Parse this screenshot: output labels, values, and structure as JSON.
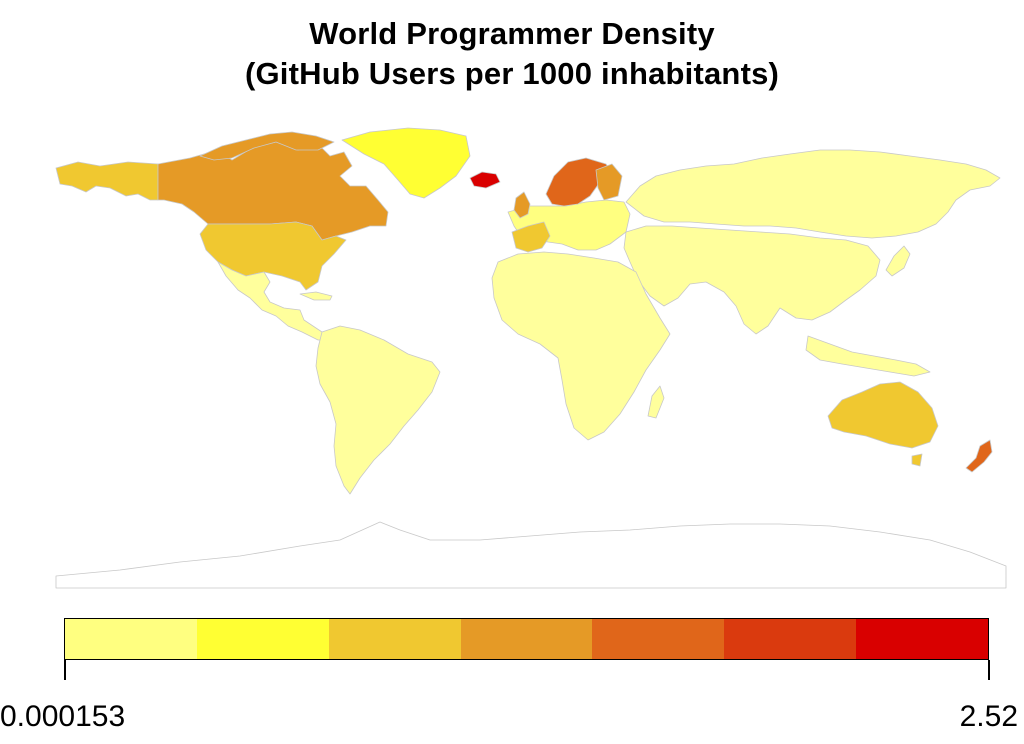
{
  "title": {
    "line1": "World Programmer Density",
    "line2": "(GitHub Users per 1000 inhabitants)"
  },
  "legend": {
    "min_label": "0.000153",
    "max_label": "2.52",
    "min_value": 0.000153,
    "max_value": 2.52,
    "classes": [
      "#ffff80",
      "#ffff33",
      "#f0c830",
      "#e59a26",
      "#e0661a",
      "#da3a0e",
      "#d90000"
    ]
  },
  "colors": {
    "base": "#ffff9c",
    "land_light": "#ffff80",
    "bright": "#ffff33",
    "class3": "#f0c830",
    "class4": "#e59a26",
    "class5": "#e0661a",
    "class7": "#d90000",
    "border": "#c8c8c8",
    "antarctica_stroke": "#c8c8c8"
  },
  "map": {
    "layer_name": "countries"
  }
}
